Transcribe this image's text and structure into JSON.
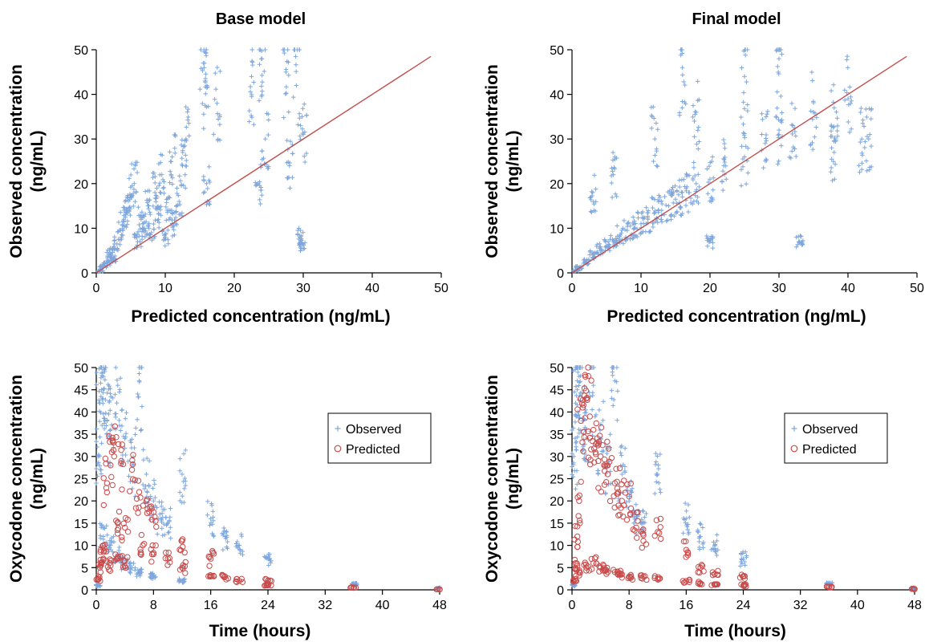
{
  "colors": {
    "observed": "#7ea6dc",
    "predicted": "#c94a4a",
    "identity_line": "#c0504d"
  },
  "chart_data": [
    {
      "id": "base-gof",
      "type": "scatter",
      "title": "Base model",
      "xlabel": "Predicted concentration (ng/mL)",
      "ylabel_lines": [
        "Observed concentration",
        "(ng/mL)"
      ],
      "xlim": [
        0,
        50
      ],
      "ylim": [
        0,
        50
      ],
      "xticks": [
        0,
        10,
        20,
        30,
        40,
        50
      ],
      "yticks": [
        0,
        10,
        20,
        30,
        40,
        50
      ],
      "identity_line": [
        [
          0,
          0
        ],
        [
          48.5,
          48.5
        ]
      ],
      "series": [
        {
          "marker": "plus",
          "description_clusters": [
            {
              "x": [
                0,
                5
              ],
              "y": [
                0,
                22
              ]
            },
            {
              "x": [
                5,
                10
              ],
              "y": [
                2,
                25
              ]
            },
            {
              "x": [
                10,
                13
              ],
              "y": [
                3,
                26
              ]
            },
            {
              "x": [
                15,
                16
              ],
              "y": [
                3,
                47
              ]
            },
            {
              "x": [
                17,
                18
              ],
              "y": [
                8,
                38
              ]
            },
            {
              "x": [
                22,
                25
              ],
              "y": [
                12,
                48
              ]
            },
            {
              "x": [
                27,
                30
              ],
              "y": [
                6,
                45
              ]
            }
          ],
          "points": [
            [
              0.5,
              0.4
            ],
            [
              1,
              1.5
            ],
            [
              1.5,
              2.2
            ],
            [
              2,
              4.5
            ],
            [
              2.5,
              3.2
            ],
            [
              3,
              6.5
            ],
            [
              3.5,
              9.5
            ],
            [
              4,
              12
            ],
            [
              4.5,
              14
            ],
            [
              5,
              17
            ],
            [
              5.5,
              20
            ],
            [
              6,
              7
            ],
            [
              6.5,
              12
            ],
            [
              7,
              10
            ],
            [
              7.5,
              15
            ],
            [
              8,
              9
            ],
            [
              8.5,
              18
            ],
            [
              9,
              12
            ],
            [
              9.5,
              22
            ],
            [
              10,
              8
            ],
            [
              10.5,
              14
            ],
            [
              11,
              26
            ],
            [
              11.5,
              11
            ],
            [
              12,
              16
            ],
            [
              12.5,
              24
            ],
            [
              13,
              30
            ],
            [
              15.5,
              47
            ],
            [
              15.8,
              43
            ],
            [
              16,
              20
            ],
            [
              17.5,
              38
            ],
            [
              22.5,
              44
            ],
            [
              23.5,
              20
            ],
            [
              24,
              48
            ],
            [
              24.5,
              30
            ],
            [
              27.5,
              45
            ],
            [
              28,
              24
            ],
            [
              29,
              42
            ],
            [
              29.5,
              8
            ],
            [
              30,
              31
            ],
            [
              29.8,
              6.5
            ]
          ]
        }
      ]
    },
    {
      "id": "final-gof",
      "type": "scatter",
      "title": "Final model",
      "xlabel": "Predicted concentration (ng/mL)",
      "ylabel_lines": [
        "Observed concentration",
        "(ng/mL)"
      ],
      "xlim": [
        0,
        50
      ],
      "ylim": [
        0,
        50
      ],
      "xticks": [
        0,
        10,
        20,
        30,
        40,
        50
      ],
      "yticks": [
        0,
        10,
        20,
        30,
        40,
        50
      ],
      "identity_line": [
        [
          0,
          0
        ],
        [
          48.5,
          48.5
        ]
      ],
      "series": [
        {
          "marker": "plus",
          "points": [
            [
              0.5,
              0.5
            ],
            [
              1,
              1.2
            ],
            [
              2,
              2.5
            ],
            [
              3,
              4
            ],
            [
              4,
              5.5
            ],
            [
              5,
              6
            ],
            [
              6,
              7
            ],
            [
              7,
              8.5
            ],
            [
              8,
              9.5
            ],
            [
              9,
              10
            ],
            [
              10,
              11
            ],
            [
              11,
              12
            ],
            [
              12,
              13.5
            ],
            [
              13,
              14
            ],
            [
              14,
              15
            ],
            [
              15,
              16.5
            ],
            [
              16,
              17
            ],
            [
              17,
              18
            ],
            [
              18,
              20
            ],
            [
              20,
              21
            ],
            [
              22,
              24
            ],
            [
              25,
              26
            ],
            [
              28,
              29
            ],
            [
              30,
              31
            ],
            [
              32,
              33
            ],
            [
              35,
              36
            ],
            [
              38,
              37
            ],
            [
              40,
              39
            ],
            [
              42,
              30
            ],
            [
              43,
              30
            ],
            [
              16,
              46
            ],
            [
              25,
              44
            ],
            [
              30,
              48
            ],
            [
              12,
              30
            ],
            [
              20,
              7
            ],
            [
              33,
              7
            ],
            [
              3,
              18
            ],
            [
              6,
              22
            ],
            [
              18,
              36
            ],
            [
              38,
              27
            ]
          ]
        }
      ]
    },
    {
      "id": "base-time",
      "type": "scatter",
      "title": "",
      "xlabel": "Time (hours)",
      "ylabel_lines": [
        "Oxycodone concentration",
        "(ng/mL)"
      ],
      "xlim": [
        0,
        48
      ],
      "ylim": [
        0,
        50
      ],
      "xticks": [
        0,
        8,
        16,
        24,
        32,
        40,
        48
      ],
      "yticks": [
        0,
        5,
        10,
        15,
        20,
        25,
        30,
        35,
        40,
        45,
        50
      ],
      "legend": {
        "placement": "right",
        "entries": [
          "Observed",
          "Predicted"
        ]
      },
      "series": [
        {
          "name": "Observed",
          "marker": "plus",
          "points": [
            [
              0.1,
              1
            ],
            [
              0.25,
              30
            ],
            [
              0.5,
              42
            ],
            [
              0.75,
              45
            ],
            [
              1,
              48
            ],
            [
              1.5,
              38
            ],
            [
              2,
              36
            ],
            [
              3,
              46
            ],
            [
              4,
              34
            ],
            [
              5,
              28
            ],
            [
              6,
              47
            ],
            [
              7,
              26
            ],
            [
              8,
              20
            ],
            [
              9,
              16
            ],
            [
              10,
              15
            ],
            [
              12,
              26
            ],
            [
              16,
              16
            ],
            [
              18,
              12
            ],
            [
              20,
              10
            ],
            [
              24,
              7
            ],
            [
              36,
              1.3
            ],
            [
              48,
              0.4
            ],
            [
              1,
              12
            ],
            [
              2,
              10
            ],
            [
              3,
              8
            ],
            [
              4,
              6
            ],
            [
              5,
              5
            ],
            [
              6,
              4
            ],
            [
              8,
              3
            ],
            [
              12,
              2
            ]
          ]
        },
        {
          "name": "Predicted",
          "marker": "circle",
          "points": [
            [
              0.25,
              2.5
            ],
            [
              0.5,
              5
            ],
            [
              1,
              10
            ],
            [
              1.5,
              24
            ],
            [
              2,
              28
            ],
            [
              2.5,
              30
            ],
            [
              3,
              15
            ],
            [
              3.5,
              29
            ],
            [
              4,
              14
            ],
            [
              5,
              27
            ],
            [
              6,
              22
            ],
            [
              6.5,
              10
            ],
            [
              7,
              20
            ],
            [
              8,
              17.5
            ],
            [
              8,
              8
            ],
            [
              10,
              7
            ],
            [
              12,
              11
            ],
            [
              12,
              5
            ],
            [
              16,
              7
            ],
            [
              16,
              3
            ],
            [
              18,
              3
            ],
            [
              20,
              2
            ],
            [
              24,
              2
            ],
            [
              24,
              1
            ],
            [
              36,
              0.5
            ],
            [
              48,
              0.1
            ],
            [
              1,
              7
            ],
            [
              2,
              5.5
            ],
            [
              3,
              7
            ],
            [
              4,
              6.5
            ]
          ]
        }
      ]
    },
    {
      "id": "final-time",
      "type": "scatter",
      "title": "",
      "xlabel": "Time (hours)",
      "ylabel_lines": [
        "Oxycodone concentration",
        "(ng/mL)"
      ],
      "xlim": [
        0,
        48
      ],
      "ylim": [
        0,
        50
      ],
      "xticks": [
        0,
        8,
        16,
        24,
        32,
        40,
        48
      ],
      "yticks": [
        0,
        5,
        10,
        15,
        20,
        25,
        30,
        35,
        40,
        45,
        50
      ],
      "legend": {
        "placement": "right",
        "entries": [
          "Observed",
          "Predicted"
        ]
      },
      "series": [
        {
          "name": "Observed",
          "marker": "plus",
          "points": [
            [
              0.1,
              1
            ],
            [
              0.25,
              30
            ],
            [
              0.5,
              42
            ],
            [
              0.75,
              45
            ],
            [
              1,
              48
            ],
            [
              1.5,
              38
            ],
            [
              2,
              36
            ],
            [
              3,
              46
            ],
            [
              4,
              34
            ],
            [
              5,
              28
            ],
            [
              6,
              47
            ],
            [
              7,
              26
            ],
            [
              8,
              20
            ],
            [
              9,
              16
            ],
            [
              10,
              15
            ],
            [
              12,
              26
            ],
            [
              16,
              16
            ],
            [
              18,
              12
            ],
            [
              20,
              10
            ],
            [
              24,
              7
            ],
            [
              36,
              1.3
            ],
            [
              48,
              0.4
            ]
          ]
        },
        {
          "name": "Predicted",
          "marker": "circle",
          "points": [
            [
              0.25,
              2
            ],
            [
              0.5,
              6
            ],
            [
              0.75,
              12
            ],
            [
              1,
              20
            ],
            [
              1.25,
              38
            ],
            [
              1.5,
              41
            ],
            [
              2,
              43
            ],
            [
              2.5,
              39
            ],
            [
              3,
              36
            ],
            [
              3.5,
              33
            ],
            [
              4,
              30
            ],
            [
              4.5,
              28
            ],
            [
              5,
              26
            ],
            [
              6,
              24
            ],
            [
              6.5,
              22
            ],
            [
              7,
              20
            ],
            [
              8,
              21
            ],
            [
              9,
              14
            ],
            [
              10,
              11
            ],
            [
              12,
              13
            ],
            [
              16,
              9
            ],
            [
              18,
              5
            ],
            [
              20,
              3.5
            ],
            [
              24,
              3
            ],
            [
              36,
              0.6
            ],
            [
              48,
              0.2
            ],
            [
              1,
              4
            ],
            [
              2,
              5
            ],
            [
              3,
              6
            ],
            [
              4,
              5
            ],
            [
              5,
              4
            ],
            [
              6,
              4
            ],
            [
              7,
              3.5
            ],
            [
              8,
              3
            ],
            [
              10,
              3
            ],
            [
              12,
              2.5
            ],
            [
              16,
              2
            ],
            [
              18,
              1.5
            ],
            [
              20,
              1.2
            ],
            [
              24,
              1
            ]
          ]
        }
      ]
    }
  ]
}
